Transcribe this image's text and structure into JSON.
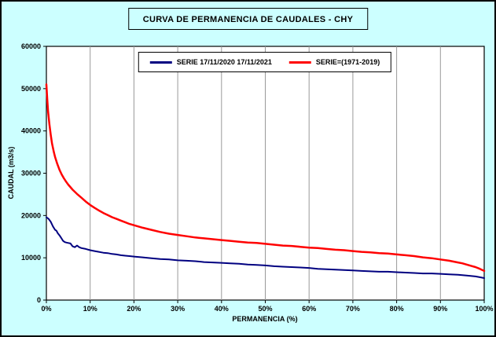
{
  "chart": {
    "title": "CURVA DE PERMANENCIA DE CAUDALES - CHY",
    "xlabel": "PERMANENCIA (%)",
    "ylabel": "CAUDAL (m3/s)",
    "legend": [
      "SERIE 17/11/2020 17/11/2021",
      "SERIE=(1971-2019)"
    ]
  },
  "chart_data": {
    "type": "line",
    "title": "CURVA DE PERMANENCIA DE CAUDALES - CHY",
    "xlabel": "PERMANENCIA (%)",
    "ylabel": "CAUDAL (m3/s)",
    "xlim": [
      0,
      100
    ],
    "ylim": [
      0,
      60000
    ],
    "x_ticks": [
      "0%",
      "10%",
      "20%",
      "30%",
      "40%",
      "50%",
      "60%",
      "70%",
      "80%",
      "90%",
      "100%"
    ],
    "x_tick_values": [
      0,
      10,
      20,
      30,
      40,
      50,
      60,
      70,
      80,
      90,
      100
    ],
    "y_ticks": [
      "0",
      "10000",
      "20000",
      "30000",
      "40000",
      "50000",
      "60000"
    ],
    "y_tick_values": [
      0,
      10000,
      20000,
      30000,
      40000,
      50000,
      60000
    ],
    "grid": "vertical-major-only",
    "legend_position": "top-center-inside",
    "colors": {
      "background": "#CCFFFF",
      "plot_background": "#FFFFFF",
      "gridline": "#999999",
      "axis": "#000000",
      "serie_2020_2021": "#000080",
      "serie_1971_2019": "#FF0000"
    },
    "series": [
      {
        "name": "SERIE 17/11/2020 17/11/2021",
        "color": "#000080",
        "width": 2,
        "points": [
          [
            0,
            19600
          ],
          [
            0.5,
            19200
          ],
          [
            1,
            18500
          ],
          [
            1.5,
            17400
          ],
          [
            2,
            16600
          ],
          [
            2.3,
            16400
          ],
          [
            2.6,
            15800
          ],
          [
            3,
            15300
          ],
          [
            3.4,
            14700
          ],
          [
            3.8,
            14000
          ],
          [
            4.2,
            13700
          ],
          [
            4.6,
            13600
          ],
          [
            5,
            13500
          ],
          [
            5.5,
            13400
          ],
          [
            6,
            12700
          ],
          [
            6.5,
            12500
          ],
          [
            7,
            12900
          ],
          [
            7.5,
            12500
          ],
          [
            8,
            12300
          ],
          [
            9,
            12100
          ],
          [
            10,
            11800
          ],
          [
            11,
            11600
          ],
          [
            12,
            11400
          ],
          [
            13,
            11200
          ],
          [
            14,
            11100
          ],
          [
            15,
            10900
          ],
          [
            16,
            10800
          ],
          [
            17,
            10600
          ],
          [
            18,
            10500
          ],
          [
            19,
            10400
          ],
          [
            20,
            10300
          ],
          [
            22,
            10100
          ],
          [
            24,
            9900
          ],
          [
            26,
            9700
          ],
          [
            28,
            9600
          ],
          [
            30,
            9400
          ],
          [
            32,
            9300
          ],
          [
            34,
            9200
          ],
          [
            36,
            9000
          ],
          [
            38,
            8900
          ],
          [
            40,
            8800
          ],
          [
            42,
            8700
          ],
          [
            44,
            8600
          ],
          [
            46,
            8400
          ],
          [
            48,
            8300
          ],
          [
            50,
            8200
          ],
          [
            52,
            8000
          ],
          [
            54,
            7900
          ],
          [
            56,
            7800
          ],
          [
            58,
            7700
          ],
          [
            60,
            7600
          ],
          [
            62,
            7400
          ],
          [
            64,
            7300
          ],
          [
            66,
            7200
          ],
          [
            68,
            7100
          ],
          [
            70,
            7000
          ],
          [
            72,
            6900
          ],
          [
            74,
            6800
          ],
          [
            76,
            6700
          ],
          [
            78,
            6700
          ],
          [
            80,
            6600
          ],
          [
            82,
            6500
          ],
          [
            84,
            6400
          ],
          [
            86,
            6300
          ],
          [
            88,
            6300
          ],
          [
            90,
            6200
          ],
          [
            92,
            6100
          ],
          [
            94,
            6000
          ],
          [
            96,
            5800
          ],
          [
            98,
            5600
          ],
          [
            99,
            5400
          ],
          [
            100,
            5200
          ]
        ]
      },
      {
        "name": "SERIE=(1971-2019)",
        "color": "#FF0000",
        "width": 2.5,
        "points": [
          [
            0,
            51000
          ],
          [
            0.2,
            47500
          ],
          [
            0.4,
            44500
          ],
          [
            0.7,
            41500
          ],
          [
            1,
            39000
          ],
          [
            1.3,
            37000
          ],
          [
            1.7,
            35000
          ],
          [
            2,
            33800
          ],
          [
            2.5,
            32200
          ],
          [
            3,
            30800
          ],
          [
            3.5,
            29700
          ],
          [
            4,
            28800
          ],
          [
            4.5,
            28000
          ],
          [
            5,
            27300
          ],
          [
            6,
            26100
          ],
          [
            7,
            25100
          ],
          [
            8,
            24200
          ],
          [
            9,
            23300
          ],
          [
            10,
            22500
          ],
          [
            11,
            21800
          ],
          [
            12,
            21200
          ],
          [
            13,
            20600
          ],
          [
            14,
            20100
          ],
          [
            15,
            19600
          ],
          [
            16,
            19200
          ],
          [
            17,
            18800
          ],
          [
            18,
            18400
          ],
          [
            19,
            18000
          ],
          [
            20,
            17700
          ],
          [
            22,
            17100
          ],
          [
            24,
            16600
          ],
          [
            26,
            16100
          ],
          [
            28,
            15700
          ],
          [
            30,
            15400
          ],
          [
            32,
            15100
          ],
          [
            34,
            14800
          ],
          [
            36,
            14600
          ],
          [
            38,
            14400
          ],
          [
            40,
            14200
          ],
          [
            42,
            14000
          ],
          [
            44,
            13800
          ],
          [
            46,
            13600
          ],
          [
            48,
            13500
          ],
          [
            50,
            13300
          ],
          [
            52,
            13100
          ],
          [
            54,
            12900
          ],
          [
            56,
            12800
          ],
          [
            58,
            12600
          ],
          [
            60,
            12400
          ],
          [
            62,
            12300
          ],
          [
            64,
            12100
          ],
          [
            66,
            11900
          ],
          [
            68,
            11800
          ],
          [
            70,
            11600
          ],
          [
            72,
            11400
          ],
          [
            74,
            11300
          ],
          [
            76,
            11100
          ],
          [
            78,
            11000
          ],
          [
            80,
            10800
          ],
          [
            82,
            10600
          ],
          [
            84,
            10400
          ],
          [
            86,
            10100
          ],
          [
            88,
            9900
          ],
          [
            90,
            9600
          ],
          [
            92,
            9300
          ],
          [
            94,
            8900
          ],
          [
            95,
            8700
          ],
          [
            96,
            8400
          ],
          [
            97,
            8100
          ],
          [
            98,
            7800
          ],
          [
            99,
            7400
          ],
          [
            100,
            6900
          ]
        ]
      }
    ]
  }
}
